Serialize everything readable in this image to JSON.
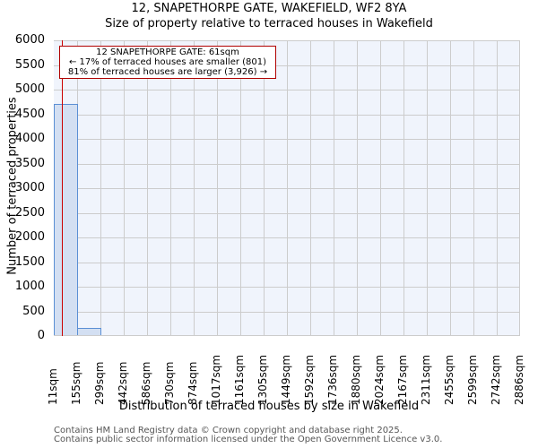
{
  "header": {
    "title": "12, SNAPETHORPE GATE, WAKEFIELD, WF2 8YA",
    "subtitle": "Size of property relative to terraced houses in Wakefield"
  },
  "annotation": {
    "line1": "12 SNAPETHORPE GATE: 61sqm",
    "line2": "← 17% of terraced houses are smaller (801)",
    "line3": "81% of terraced houses are larger (3,926) →"
  },
  "footer": {
    "line1": "Contains HM Land Registry data © Crown copyright and database right 2025.",
    "line2": "Contains public sector information licensed under the Open Government Licence v3.0."
  },
  "chart_data": {
    "type": "bar",
    "title": "12, SNAPETHORPE GATE, WAKEFIELD, WF2 8YA",
    "subtitle": "Size of property relative to terraced houses in Wakefield",
    "xlabel": "Distribution of terraced houses by size in Wakefield",
    "ylabel": "Number of terraced properties",
    "categories": [
      "11sqm",
      "155sqm",
      "299sqm",
      "442sqm",
      "586sqm",
      "730sqm",
      "874sqm",
      "1017sqm",
      "1161sqm",
      "1305sqm",
      "1449sqm",
      "1592sqm",
      "1736sqm",
      "1880sqm",
      "2024sqm",
      "2167sqm",
      "2311sqm",
      "2455sqm",
      "2599sqm",
      "2742sqm",
      "2886sqm"
    ],
    "values": [
      4700,
      140,
      0,
      0,
      0,
      0,
      0,
      0,
      0,
      0,
      0,
      0,
      0,
      0,
      0,
      0,
      0,
      0,
      0,
      0
    ],
    "yticks": [
      0,
      500,
      1000,
      1500,
      2000,
      2500,
      3000,
      3500,
      4000,
      4500,
      5000,
      5500,
      6000
    ],
    "ylim": [
      0,
      6000
    ],
    "grid": true,
    "marker": {
      "value_sqm": 61,
      "color": "#cc0000"
    },
    "bar_color": "#d3dff2",
    "bar_edge_color": "#5b8fd4"
  }
}
